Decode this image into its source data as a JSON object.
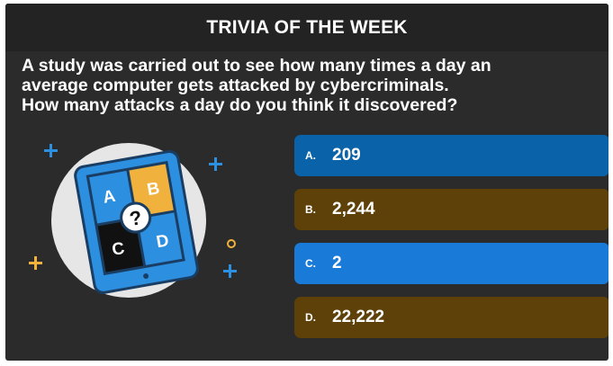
{
  "header": {
    "title": "TRIVIA OF THE WEEK"
  },
  "question": {
    "lines": [
      "A study was carried out to see how many times a day an",
      "average computer gets attacked by cybercriminals.",
      "How many attacks a day do you think it discovered?"
    ]
  },
  "illustration": {
    "tiles": [
      "A",
      "B",
      "C",
      "D"
    ],
    "center_symbol": "?",
    "colors": {
      "circle": "#e6e6e6",
      "tablet_frame": "#2d8fe0",
      "tablet_outline": "#1a3e63",
      "tile_a": "#2d8fe0",
      "tile_b": "#f0b23c",
      "tile_c": "#111111",
      "tile_d": "#2d8fe0",
      "sparkle_blue": "#2d8fe0",
      "sparkle_yellow": "#f0b23c"
    }
  },
  "answers": [
    {
      "letter": "A.",
      "value": "209",
      "color": "#0a63a9"
    },
    {
      "letter": "B.",
      "value": "2,244",
      "color": "#5e4108"
    },
    {
      "letter": "C.",
      "value": "2",
      "color": "#1a7ad8"
    },
    {
      "letter": "D.",
      "value": "22,222",
      "color": "#5e4108"
    }
  ]
}
